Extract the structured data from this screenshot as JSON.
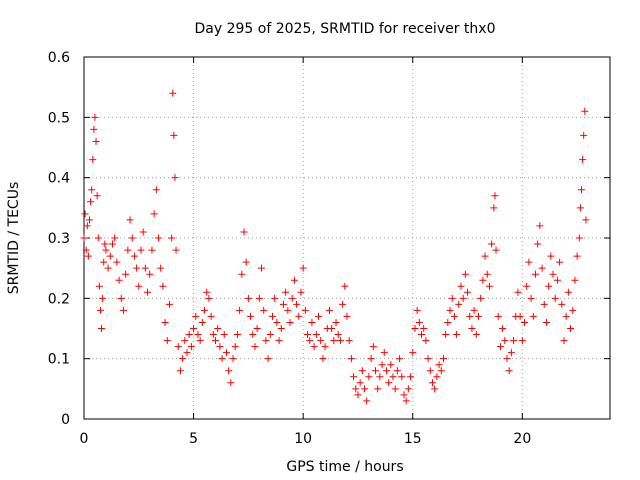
{
  "chart_data": {
    "type": "scatter",
    "title": "Day 295 of 2025, SRMTID for receiver thx0",
    "xlabel": "GPS time / hours",
    "ylabel": "SRMTID / TECUs",
    "xlim": [
      0,
      24
    ],
    "ylim": [
      0,
      0.6
    ],
    "xticks": [
      0,
      5,
      10,
      15,
      20
    ],
    "xtick_labels": [
      "0",
      "5",
      "10",
      "15",
      "20"
    ],
    "yticks": [
      0,
      0.1,
      0.2,
      0.3,
      0.4,
      0.5,
      0.6
    ],
    "ytick_labels": [
      "0",
      "0.1",
      "0.2",
      "0.3",
      "0.4",
      "0.5",
      "0.6"
    ],
    "grid": true,
    "marker": "+",
    "color": "#ff0000",
    "series": [
      {
        "name": "thx0",
        "points": [
          [
            0.0,
            0.3
          ],
          [
            0.05,
            0.34
          ],
          [
            0.1,
            0.28
          ],
          [
            0.15,
            0.32
          ],
          [
            0.2,
            0.27
          ],
          [
            0.25,
            0.33
          ],
          [
            0.3,
            0.36
          ],
          [
            0.35,
            0.38
          ],
          [
            0.4,
            0.43
          ],
          [
            0.45,
            0.48
          ],
          [
            0.5,
            0.5
          ],
          [
            0.55,
            0.46
          ],
          [
            0.6,
            0.37
          ],
          [
            0.65,
            0.3
          ],
          [
            0.7,
            0.22
          ],
          [
            0.75,
            0.18
          ],
          [
            0.8,
            0.15
          ],
          [
            0.85,
            0.2
          ],
          [
            0.9,
            0.26
          ],
          [
            0.95,
            0.29
          ],
          [
            1.0,
            0.28
          ],
          [
            1.1,
            0.25
          ],
          [
            1.2,
            0.27
          ],
          [
            1.3,
            0.29
          ],
          [
            1.4,
            0.3
          ],
          [
            1.5,
            0.26
          ],
          [
            1.6,
            0.23
          ],
          [
            1.7,
            0.2
          ],
          [
            1.8,
            0.18
          ],
          [
            1.9,
            0.24
          ],
          [
            2.0,
            0.28
          ],
          [
            2.1,
            0.33
          ],
          [
            2.2,
            0.3
          ],
          [
            2.3,
            0.27
          ],
          [
            2.4,
            0.25
          ],
          [
            2.5,
            0.22
          ],
          [
            2.6,
            0.28
          ],
          [
            2.7,
            0.31
          ],
          [
            2.8,
            0.25
          ],
          [
            2.9,
            0.21
          ],
          [
            3.0,
            0.24
          ],
          [
            3.1,
            0.28
          ],
          [
            3.2,
            0.34
          ],
          [
            3.3,
            0.38
          ],
          [
            3.4,
            0.3
          ],
          [
            3.5,
            0.25
          ],
          [
            3.6,
            0.22
          ],
          [
            3.7,
            0.16
          ],
          [
            3.8,
            0.13
          ],
          [
            3.9,
            0.19
          ],
          [
            4.0,
            0.3
          ],
          [
            4.05,
            0.54
          ],
          [
            4.1,
            0.47
          ],
          [
            4.15,
            0.4
          ],
          [
            4.2,
            0.28
          ],
          [
            4.3,
            0.12
          ],
          [
            4.4,
            0.08
          ],
          [
            4.5,
            0.1
          ],
          [
            4.6,
            0.13
          ],
          [
            4.7,
            0.11
          ],
          [
            4.8,
            0.14
          ],
          [
            4.9,
            0.12
          ],
          [
            5.0,
            0.15
          ],
          [
            5.1,
            0.17
          ],
          [
            5.2,
            0.14
          ],
          [
            5.3,
            0.13
          ],
          [
            5.4,
            0.16
          ],
          [
            5.5,
            0.18
          ],
          [
            5.6,
            0.21
          ],
          [
            5.7,
            0.2
          ],
          [
            5.8,
            0.17
          ],
          [
            5.9,
            0.14
          ],
          [
            6.0,
            0.13
          ],
          [
            6.1,
            0.15
          ],
          [
            6.2,
            0.12
          ],
          [
            6.3,
            0.1
          ],
          [
            6.4,
            0.14
          ],
          [
            6.5,
            0.11
          ],
          [
            6.6,
            0.08
          ],
          [
            6.7,
            0.06
          ],
          [
            6.8,
            0.1
          ],
          [
            6.9,
            0.12
          ],
          [
            7.0,
            0.14
          ],
          [
            7.1,
            0.18
          ],
          [
            7.2,
            0.24
          ],
          [
            7.3,
            0.31
          ],
          [
            7.4,
            0.26
          ],
          [
            7.5,
            0.2
          ],
          [
            7.6,
            0.17
          ],
          [
            7.7,
            0.14
          ],
          [
            7.8,
            0.12
          ],
          [
            7.9,
            0.15
          ],
          [
            8.0,
            0.2
          ],
          [
            8.1,
            0.25
          ],
          [
            8.2,
            0.18
          ],
          [
            8.3,
            0.13
          ],
          [
            8.4,
            0.1
          ],
          [
            8.5,
            0.14
          ],
          [
            8.6,
            0.17
          ],
          [
            8.7,
            0.2
          ],
          [
            8.8,
            0.16
          ],
          [
            8.9,
            0.13
          ],
          [
            9.0,
            0.15
          ],
          [
            9.1,
            0.19
          ],
          [
            9.2,
            0.21
          ],
          [
            9.3,
            0.18
          ],
          [
            9.4,
            0.16
          ],
          [
            9.5,
            0.2
          ],
          [
            9.6,
            0.23
          ],
          [
            9.7,
            0.19
          ],
          [
            9.8,
            0.17
          ],
          [
            9.9,
            0.21
          ],
          [
            10.0,
            0.25
          ],
          [
            10.1,
            0.18
          ],
          [
            10.2,
            0.14
          ],
          [
            10.3,
            0.13
          ],
          [
            10.4,
            0.16
          ],
          [
            10.5,
            0.12
          ],
          [
            10.6,
            0.14
          ],
          [
            10.7,
            0.17
          ],
          [
            10.8,
            0.13
          ],
          [
            10.9,
            0.1
          ],
          [
            11.0,
            0.12
          ],
          [
            11.1,
            0.15
          ],
          [
            11.2,
            0.18
          ],
          [
            11.3,
            0.15
          ],
          [
            11.4,
            0.13
          ],
          [
            11.5,
            0.16
          ],
          [
            11.6,
            0.14
          ],
          [
            11.7,
            0.13
          ],
          [
            11.8,
            0.19
          ],
          [
            11.9,
            0.22
          ],
          [
            12.0,
            0.17
          ],
          [
            12.1,
            0.13
          ],
          [
            12.2,
            0.1
          ],
          [
            12.3,
            0.07
          ],
          [
            12.4,
            0.05
          ],
          [
            12.5,
            0.04
          ],
          [
            12.6,
            0.06
          ],
          [
            12.7,
            0.08
          ],
          [
            12.8,
            0.05
          ],
          [
            12.9,
            0.03
          ],
          [
            13.0,
            0.07
          ],
          [
            13.1,
            0.1
          ],
          [
            13.2,
            0.12
          ],
          [
            13.3,
            0.08
          ],
          [
            13.4,
            0.05
          ],
          [
            13.5,
            0.07
          ],
          [
            13.6,
            0.09
          ],
          [
            13.7,
            0.11
          ],
          [
            13.8,
            0.08
          ],
          [
            13.9,
            0.06
          ],
          [
            14.0,
            0.09
          ],
          [
            14.1,
            0.07
          ],
          [
            14.2,
            0.05
          ],
          [
            14.3,
            0.08
          ],
          [
            14.4,
            0.1
          ],
          [
            14.5,
            0.07
          ],
          [
            14.6,
            0.04
          ],
          [
            14.7,
            0.03
          ],
          [
            14.8,
            0.05
          ],
          [
            14.9,
            0.07
          ],
          [
            15.0,
            0.11
          ],
          [
            15.1,
            0.15
          ],
          [
            15.2,
            0.18
          ],
          [
            15.3,
            0.16
          ],
          [
            15.4,
            0.14
          ],
          [
            15.5,
            0.15
          ],
          [
            15.6,
            0.13
          ],
          [
            15.7,
            0.1
          ],
          [
            15.8,
            0.08
          ],
          [
            15.9,
            0.06
          ],
          [
            16.0,
            0.05
          ],
          [
            16.1,
            0.07
          ],
          [
            16.2,
            0.09
          ],
          [
            16.3,
            0.08
          ],
          [
            16.4,
            0.1
          ],
          [
            16.5,
            0.14
          ],
          [
            16.6,
            0.16
          ],
          [
            16.7,
            0.18
          ],
          [
            16.8,
            0.2
          ],
          [
            16.9,
            0.17
          ],
          [
            17.0,
            0.14
          ],
          [
            17.1,
            0.19
          ],
          [
            17.2,
            0.22
          ],
          [
            17.3,
            0.2
          ],
          [
            17.4,
            0.24
          ],
          [
            17.5,
            0.21
          ],
          [
            17.6,
            0.17
          ],
          [
            17.7,
            0.15
          ],
          [
            17.8,
            0.18
          ],
          [
            17.9,
            0.14
          ],
          [
            18.0,
            0.17
          ],
          [
            18.1,
            0.2
          ],
          [
            18.2,
            0.23
          ],
          [
            18.3,
            0.27
          ],
          [
            18.4,
            0.24
          ],
          [
            18.5,
            0.22
          ],
          [
            18.6,
            0.29
          ],
          [
            18.7,
            0.35
          ],
          [
            18.75,
            0.37
          ],
          [
            18.8,
            0.28
          ],
          [
            18.9,
            0.17
          ],
          [
            19.0,
            0.12
          ],
          [
            19.1,
            0.15
          ],
          [
            19.2,
            0.13
          ],
          [
            19.3,
            0.1
          ],
          [
            19.4,
            0.08
          ],
          [
            19.5,
            0.11
          ],
          [
            19.6,
            0.13
          ],
          [
            19.7,
            0.17
          ],
          [
            19.8,
            0.21
          ],
          [
            19.9,
            0.17
          ],
          [
            20.0,
            0.13
          ],
          [
            20.1,
            0.16
          ],
          [
            20.2,
            0.22
          ],
          [
            20.3,
            0.26
          ],
          [
            20.4,
            0.2
          ],
          [
            20.5,
            0.17
          ],
          [
            20.6,
            0.24
          ],
          [
            20.7,
            0.29
          ],
          [
            20.8,
            0.32
          ],
          [
            20.9,
            0.25
          ],
          [
            21.0,
            0.19
          ],
          [
            21.1,
            0.16
          ],
          [
            21.2,
            0.22
          ],
          [
            21.3,
            0.27
          ],
          [
            21.4,
            0.24
          ],
          [
            21.5,
            0.2
          ],
          [
            21.6,
            0.23
          ],
          [
            21.7,
            0.26
          ],
          [
            21.8,
            0.19
          ],
          [
            21.9,
            0.13
          ],
          [
            22.0,
            0.17
          ],
          [
            22.1,
            0.21
          ],
          [
            22.2,
            0.15
          ],
          [
            22.3,
            0.18
          ],
          [
            22.4,
            0.23
          ],
          [
            22.5,
            0.27
          ],
          [
            22.6,
            0.3
          ],
          [
            22.65,
            0.35
          ],
          [
            22.7,
            0.38
          ],
          [
            22.75,
            0.43
          ],
          [
            22.8,
            0.47
          ],
          [
            22.85,
            0.51
          ],
          [
            22.9,
            0.33
          ]
        ]
      }
    ]
  }
}
